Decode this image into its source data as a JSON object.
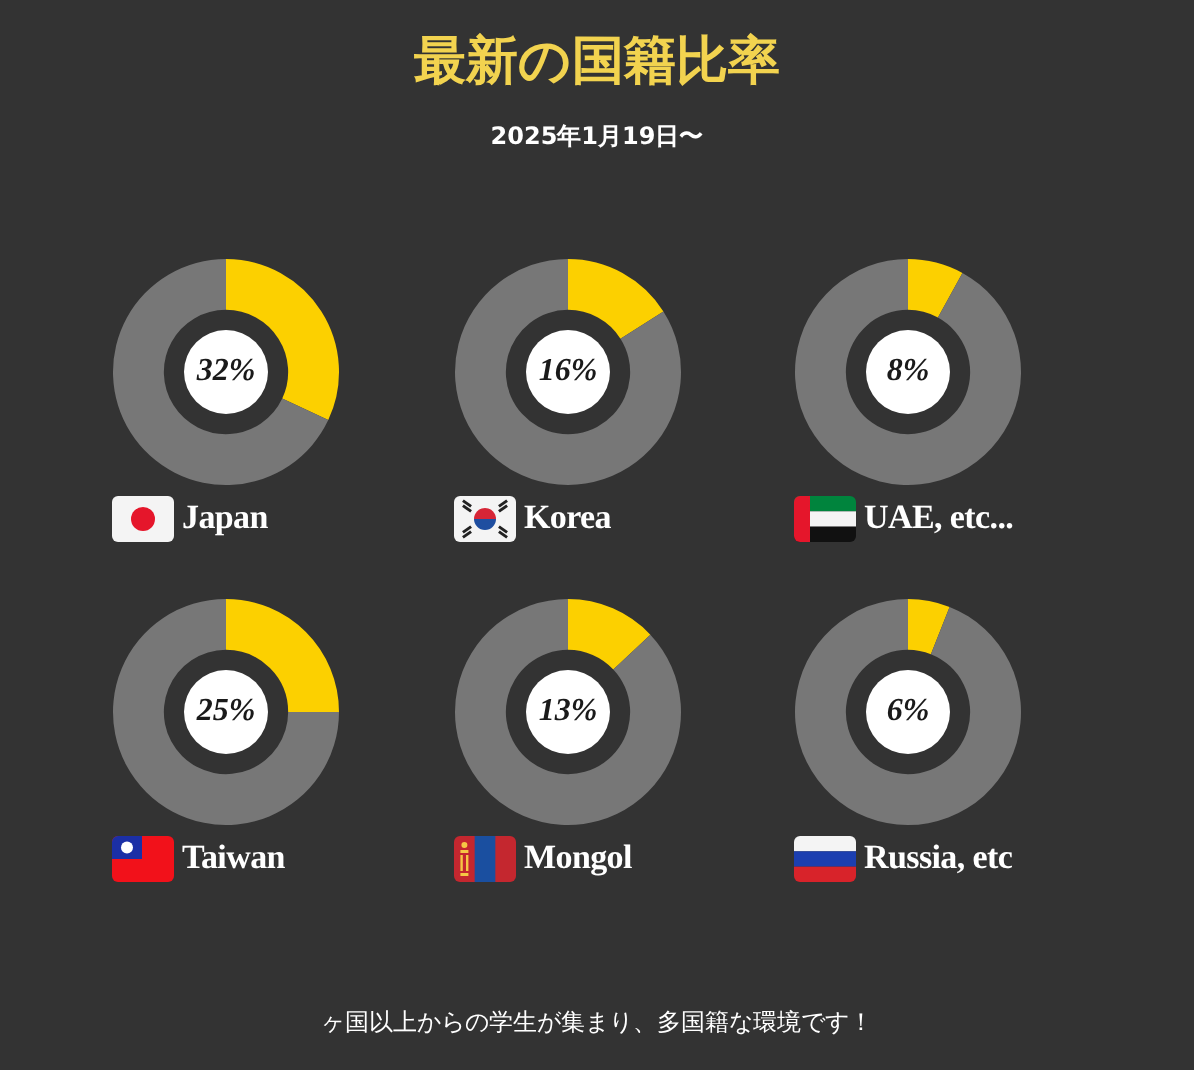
{
  "chart_data": [
    {
      "type": "other",
      "title": "最新の国籍比率",
      "subtitle": "2025年1月19日〜",
      "annotations": [
        "ヶ国以上からの学生が集まり、多国籍な環境です！"
      ]
    },
    {
      "type": "donut",
      "title": "Japan",
      "categories": [
        null,
        null
      ],
      "values": [
        32,
        68
      ],
      "colors": [
        "#fcd000",
        "#777777"
      ],
      "value_labels": [
        "32%",
        null
      ]
    },
    {
      "type": "donut",
      "title": "Korea",
      "categories": [
        null,
        null
      ],
      "values": [
        16,
        84
      ],
      "colors": [
        "#fcd000",
        "#777777"
      ],
      "value_labels": [
        "16%",
        null
      ]
    },
    {
      "type": "donut",
      "title": "UAE, etc...",
      "categories": [
        null,
        null
      ],
      "values": [
        8,
        92
      ],
      "colors": [
        "#fcd000",
        "#777777"
      ],
      "value_labels": [
        "8%",
        null
      ]
    },
    {
      "type": "donut",
      "title": "Taiwan",
      "categories": [
        null,
        null
      ],
      "values": [
        25,
        75
      ],
      "colors": [
        "#fcd000",
        "#777777"
      ],
      "value_labels": [
        "25%",
        null
      ]
    },
    {
      "type": "donut",
      "title": "Mongol",
      "categories": [
        null,
        null
      ],
      "values": [
        13,
        87
      ],
      "colors": [
        "#fcd000",
        "#777777"
      ],
      "value_labels": [
        "13%",
        null
      ]
    },
    {
      "type": "donut",
      "title": "Russia, etc",
      "categories": [
        null,
        null
      ],
      "values": [
        6,
        94
      ],
      "colors": [
        "#fcd000",
        "#777777"
      ],
      "value_labels": [
        "6%",
        null
      ]
    }
  ]
}
